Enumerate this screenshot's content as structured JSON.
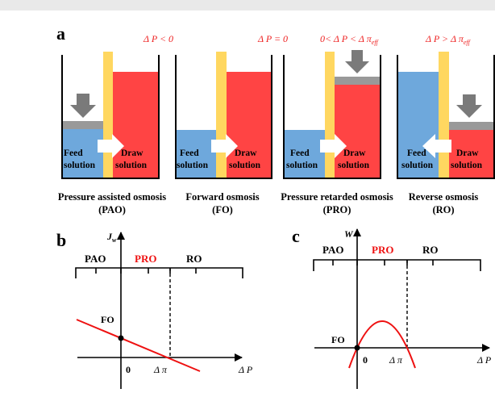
{
  "panel_labels": {
    "a": "a",
    "b": "b",
    "c": "c"
  },
  "colors": {
    "feed": "#6ea8dc",
    "draw": "#ff4444",
    "membrane": "#ffd760",
    "piston": "#7a7a7a",
    "piston_plate": "#9a9a9a",
    "curve": "#ee1111",
    "pro_label": "#ee1111"
  },
  "panel_a": {
    "conditions": [
      {
        "main": "Δ P < 0",
        "sub": ""
      },
      {
        "main": "Δ P = 0",
        "sub": ""
      },
      {
        "main": "0< Δ P < Δ π",
        "sub": "eff"
      },
      {
        "main": "Δ P > Δ π",
        "sub": "eff"
      }
    ],
    "feed_label": [
      "Feed",
      "solution"
    ],
    "draw_label": [
      "Draw",
      "solution"
    ],
    "process_names": [
      {
        "name": "Pressure assisted osmosis",
        "abbr": "(PAO)"
      },
      {
        "name": "Forward osmosis",
        "abbr": "(FO)"
      },
      {
        "name": "Pressure retarded osmosis",
        "abbr": "(PRO)"
      },
      {
        "name": "Reverse osmosis",
        "abbr": "(RO)"
      }
    ]
  },
  "panel_b": {
    "y_axis": "J",
    "y_sub": "w",
    "x_axis": "Δ P",
    "regions": [
      "PAO",
      "PRO",
      "RO"
    ],
    "fo_label": "FO",
    "zero": "0",
    "delta_pi": "Δ π"
  },
  "panel_c": {
    "y_axis": "W",
    "x_axis": "Δ P",
    "regions": [
      "PAO",
      "PRO",
      "RO"
    ],
    "fo_label": "FO",
    "zero": "0",
    "delta_pi": "Δ π"
  }
}
